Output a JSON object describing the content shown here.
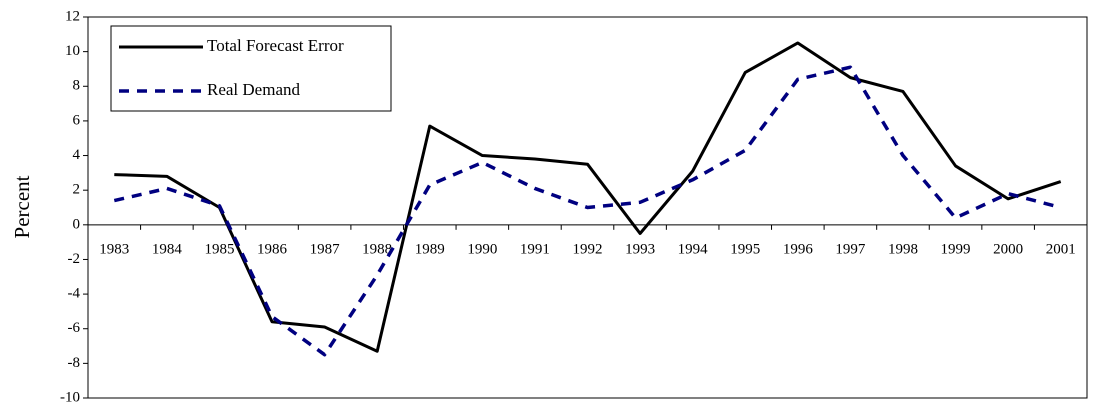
{
  "chart_data": {
    "type": "line",
    "ylabel": "Percent",
    "categories": [
      "1983",
      "1984",
      "1985",
      "1986",
      "1987",
      "1988",
      "1989",
      "1990",
      "1991",
      "1992",
      "1993",
      "1994",
      "1995",
      "1996",
      "1997",
      "1998",
      "1999",
      "2000",
      "2001"
    ],
    "series": [
      {
        "name": "Total Forecast Error",
        "color": "#000000",
        "dash": false,
        "values": [
          2.9,
          2.8,
          1.0,
          -5.6,
          -5.9,
          -7.3,
          5.7,
          4.0,
          3.8,
          3.5,
          -0.5,
          3.1,
          8.8,
          10.5,
          8.5,
          7.7,
          3.4,
          1.5,
          2.5
        ]
      },
      {
        "name": "Real Demand",
        "color": "#000080",
        "dash": true,
        "values": [
          1.4,
          2.1,
          1.1,
          -5.3,
          -7.5,
          -2.9,
          2.3,
          3.6,
          2.1,
          1.0,
          1.3,
          2.6,
          4.3,
          8.4,
          9.1,
          4.0,
          0.4,
          1.8,
          1.0
        ]
      }
    ],
    "ylim": [
      -10,
      12
    ],
    "yticks": [
      -10,
      -8,
      -6,
      -4,
      -2,
      0,
      2,
      4,
      6,
      8,
      10,
      12
    ],
    "legend": "top-left"
  }
}
